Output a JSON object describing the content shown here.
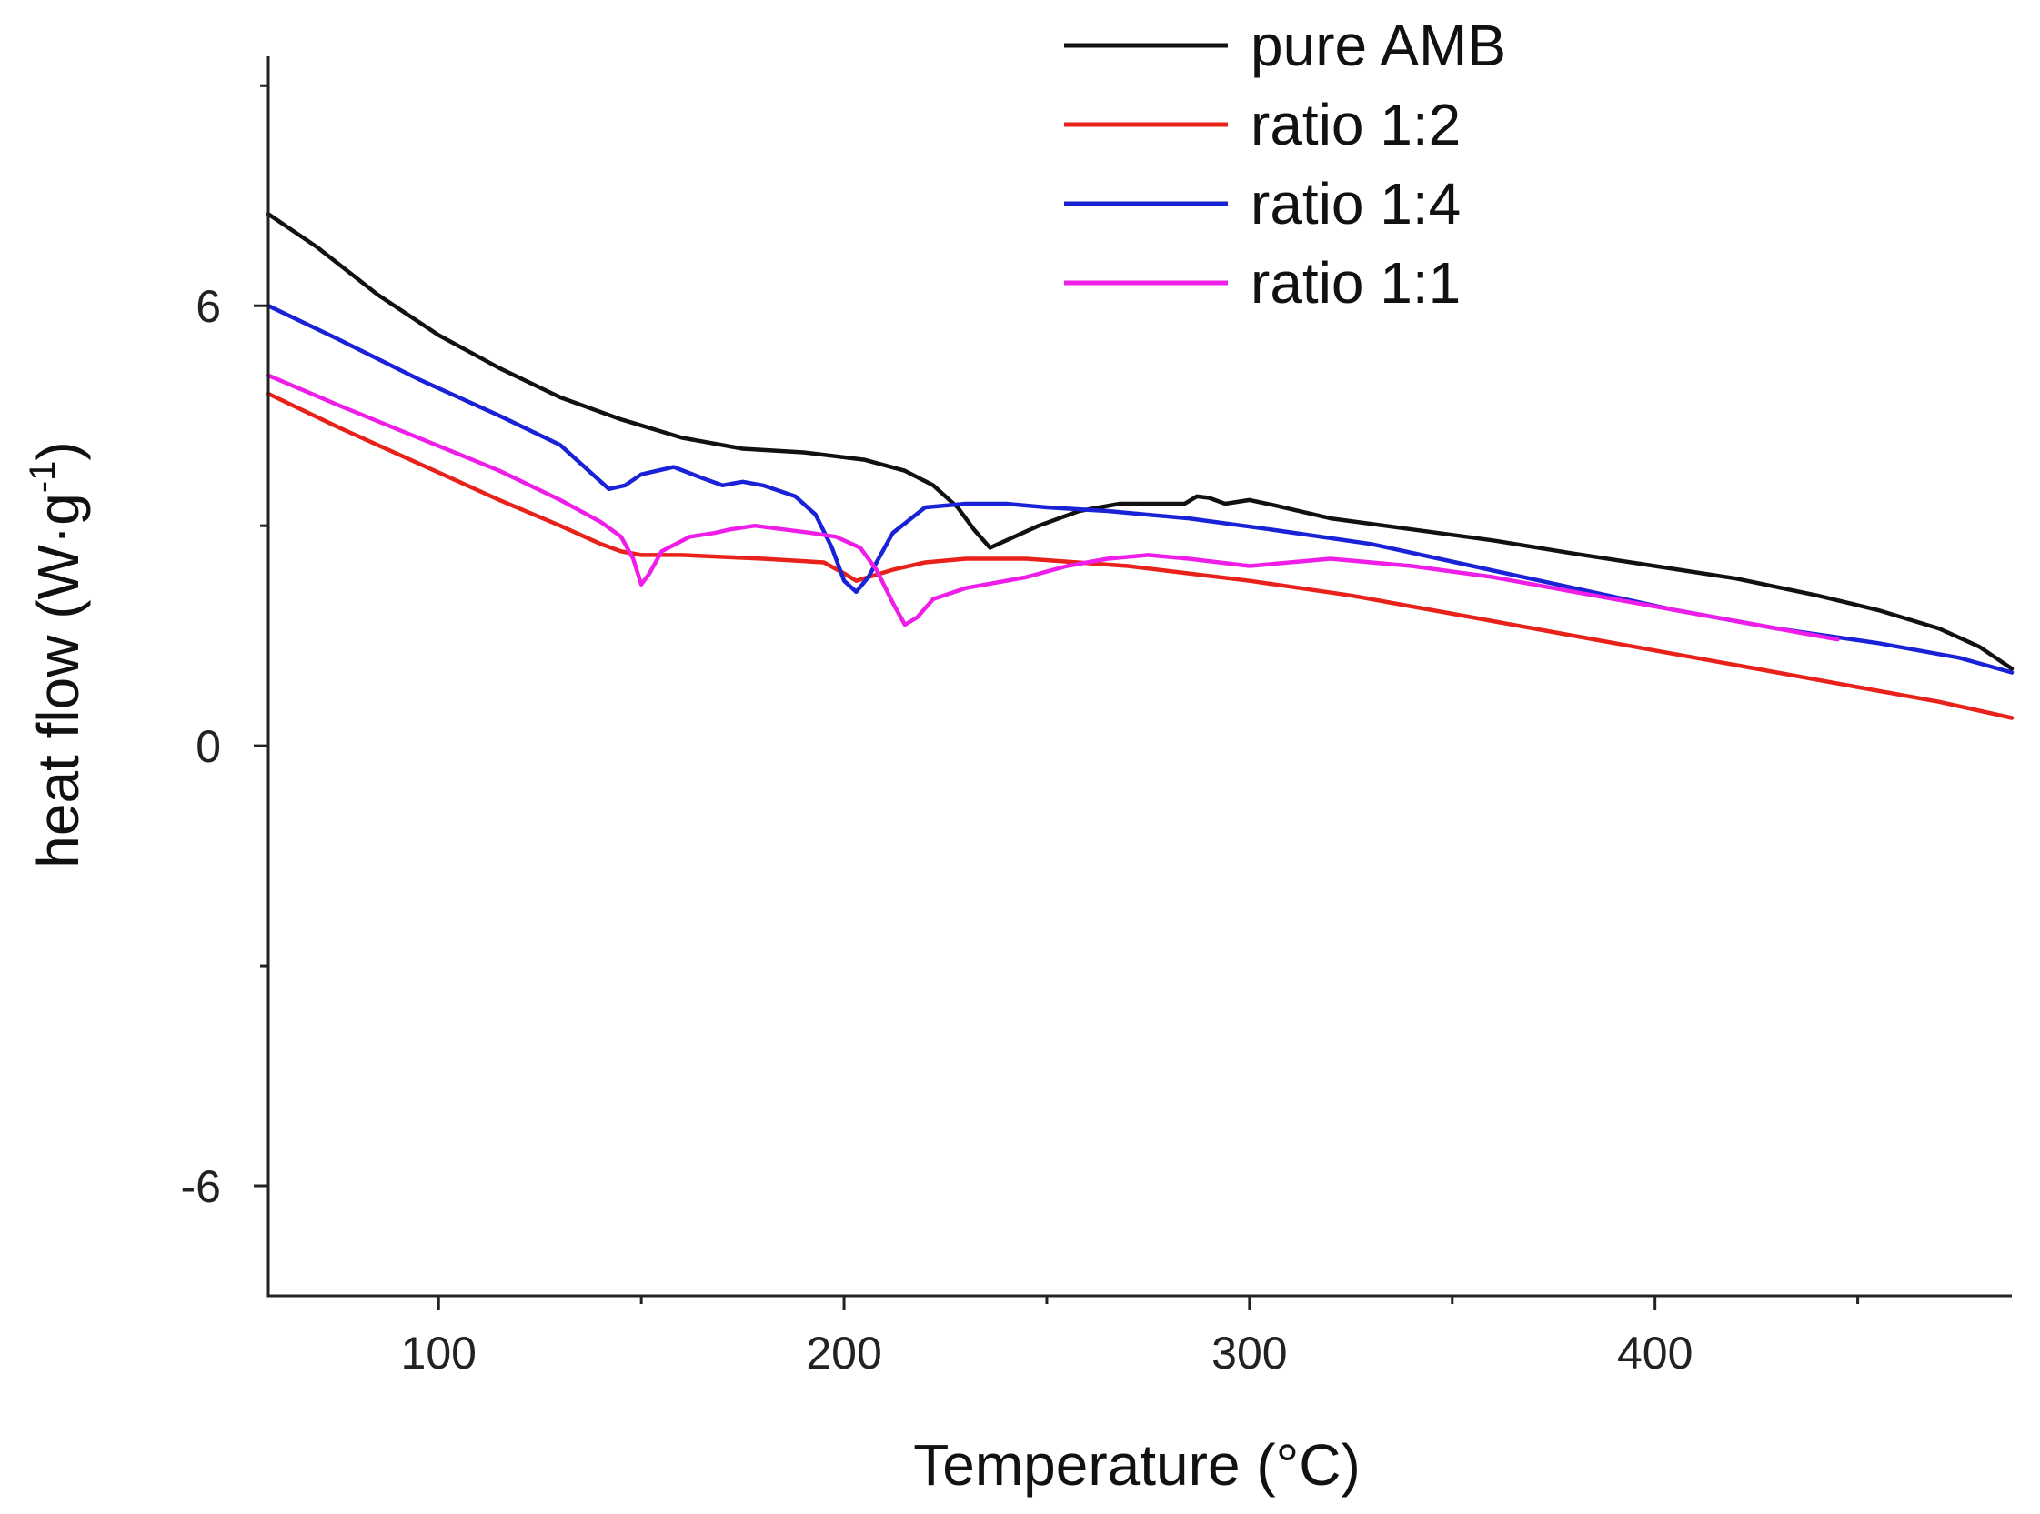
{
  "chart_data": {
    "type": "line",
    "title": "",
    "xlabel": "Temperature (°C)",
    "ylabel": "heat flow (W·g",
    "ylabel_sup": "-1",
    "ylabel_close": ")",
    "xlim": [
      58,
      488
    ],
    "ylim": [
      -7.5,
      9.4
    ],
    "x_ticks": [
      100,
      200,
      300,
      400
    ],
    "x_tick_labels": [
      "100",
      "200",
      "300",
      "400"
    ],
    "x_minor_ticks": [
      150,
      250,
      350,
      450
    ],
    "y_ticks": [
      6,
      0,
      -6
    ],
    "y_tick_labels": [
      "6",
      "0",
      "-6"
    ],
    "y_minor_ticks": [
      9,
      3,
      -3
    ],
    "legend_position": "top-right",
    "grid": false,
    "series": [
      {
        "name": "pure AMB",
        "color": "#111111",
        "x": [
          58,
          70,
          85,
          100,
          115,
          130,
          145,
          160,
          175,
          190,
          205,
          215,
          222,
          228,
          232,
          236,
          240,
          248,
          258,
          268,
          278,
          284,
          287,
          290,
          294,
          300,
          306,
          320,
          340,
          360,
          380,
          400,
          420,
          440,
          455,
          470,
          480,
          488
        ],
        "y": [
          7.25,
          6.8,
          6.15,
          5.6,
          5.15,
          4.75,
          4.45,
          4.2,
          4.05,
          4.0,
          3.9,
          3.75,
          3.55,
          3.25,
          2.95,
          2.7,
          2.8,
          3.0,
          3.2,
          3.3,
          3.3,
          3.3,
          3.4,
          3.38,
          3.3,
          3.35,
          3.28,
          3.1,
          2.95,
          2.8,
          2.62,
          2.45,
          2.28,
          2.05,
          1.85,
          1.6,
          1.35,
          1.05
        ]
      },
      {
        "name": "ratio 1:2",
        "color": "#e8211a",
        "x": [
          58,
          75,
          95,
          115,
          130,
          140,
          145,
          150,
          160,
          180,
          195,
          200,
          203,
          206,
          212,
          220,
          230,
          245,
          270,
          300,
          325,
          350,
          375,
          400,
          425,
          450,
          470,
          488
        ],
        "y": [
          4.8,
          4.35,
          3.85,
          3.35,
          3.0,
          2.75,
          2.65,
          2.6,
          2.6,
          2.55,
          2.5,
          2.35,
          2.25,
          2.3,
          2.4,
          2.5,
          2.55,
          2.55,
          2.45,
          2.25,
          2.05,
          1.8,
          1.55,
          1.3,
          1.05,
          0.8,
          0.6,
          0.38
        ]
      },
      {
        "name": "ratio 1:4",
        "color": "#1a22d8",
        "x": [
          58,
          75,
          95,
          115,
          130,
          138,
          142,
          146,
          150,
          158,
          165,
          170,
          175,
          180,
          188,
          193,
          197,
          200,
          203,
          206,
          212,
          220,
          230,
          240,
          250,
          265,
          285,
          305,
          330,
          355,
          380,
          405,
          430,
          455,
          475,
          488
        ],
        "y": [
          6.0,
          5.55,
          5.0,
          4.5,
          4.1,
          3.7,
          3.5,
          3.55,
          3.7,
          3.8,
          3.65,
          3.55,
          3.6,
          3.55,
          3.4,
          3.15,
          2.7,
          2.25,
          2.1,
          2.3,
          2.9,
          3.25,
          3.3,
          3.3,
          3.25,
          3.2,
          3.1,
          2.95,
          2.75,
          2.45,
          2.15,
          1.85,
          1.6,
          1.4,
          1.2,
          1.0
        ]
      },
      {
        "name": "ratio 1:1",
        "color": "#ee1ee8",
        "x": [
          58,
          75,
          95,
          115,
          130,
          140,
          145,
          148,
          150,
          152,
          155,
          162,
          168,
          172,
          178,
          185,
          192,
          198,
          204,
          208,
          212,
          215,
          218,
          222,
          230,
          245,
          255,
          265,
          275,
          285,
          300,
          320,
          340,
          360,
          380,
          400,
          420,
          440,
          445
        ],
        "y": [
          5.05,
          4.65,
          4.2,
          3.75,
          3.35,
          3.05,
          2.85,
          2.55,
          2.2,
          2.35,
          2.65,
          2.85,
          2.9,
          2.95,
          3.0,
          2.95,
          2.9,
          2.85,
          2.7,
          2.4,
          1.95,
          1.65,
          1.75,
          2.0,
          2.15,
          2.3,
          2.45,
          2.55,
          2.6,
          2.55,
          2.45,
          2.55,
          2.45,
          2.3,
          2.1,
          1.9,
          1.7,
          1.5,
          1.45
        ]
      }
    ]
  }
}
